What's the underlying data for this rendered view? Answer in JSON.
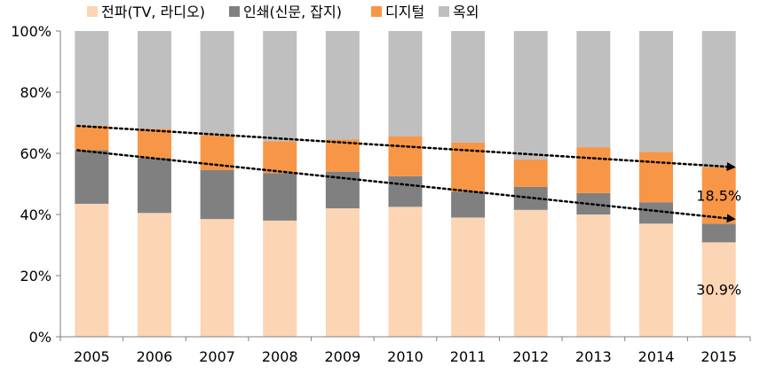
{
  "chart_data": {
    "type": "bar",
    "stacked": true,
    "normalized": true,
    "categories": [
      "2005",
      "2006",
      "2007",
      "2008",
      "2009",
      "2010",
      "2011",
      "2012",
      "2013",
      "2014",
      "2015"
    ],
    "series": [
      {
        "name": "전파(TV, 라디오)",
        "color": "#FCD5B5",
        "values": [
          43.5,
          40.5,
          38.5,
          38.0,
          42.0,
          42.5,
          39.0,
          41.5,
          40.0,
          37.0,
          30.9
        ]
      },
      {
        "name": "인쇄(신문, 잡지)",
        "color": "#808080",
        "values": [
          17.5,
          18.0,
          16.0,
          15.5,
          12.0,
          10.0,
          8.5,
          7.5,
          7.0,
          7.0,
          6.1
        ]
      },
      {
        "name": "디지털",
        "color": "#F79646",
        "values": [
          8.0,
          9.5,
          11.5,
          10.5,
          10.5,
          13.0,
          16.0,
          9.0,
          15.0,
          16.5,
          18.5
        ]
      },
      {
        "name": "옥외",
        "color": "#BFBFBF",
        "values": [
          31.0,
          32.0,
          34.0,
          36.0,
          35.5,
          34.5,
          36.5,
          42.0,
          38.0,
          39.5,
          44.5
        ]
      }
    ],
    "y_axis": {
      "min": 0,
      "max": 100,
      "step": 20,
      "tick_labels": [
        "0%",
        "20%",
        "40%",
        "60%",
        "80%",
        "100%"
      ]
    },
    "legend": {
      "position": "top-left"
    },
    "grid": false,
    "annotations": [
      {
        "category": "2015",
        "series": "디지털",
        "text": "18.5%"
      },
      {
        "category": "2015",
        "series": "전파(TV, 라디오)",
        "text": "30.9%"
      }
    ],
    "trend_arrows": [
      {
        "from": {
          "category": "2005",
          "value": 69
        },
        "to": {
          "category": "2015",
          "value": 55.5
        },
        "style": "dotted"
      },
      {
        "from": {
          "category": "2005",
          "value": 61
        },
        "to": {
          "category": "2015",
          "value": 38.5
        },
        "style": "dotted"
      }
    ]
  }
}
